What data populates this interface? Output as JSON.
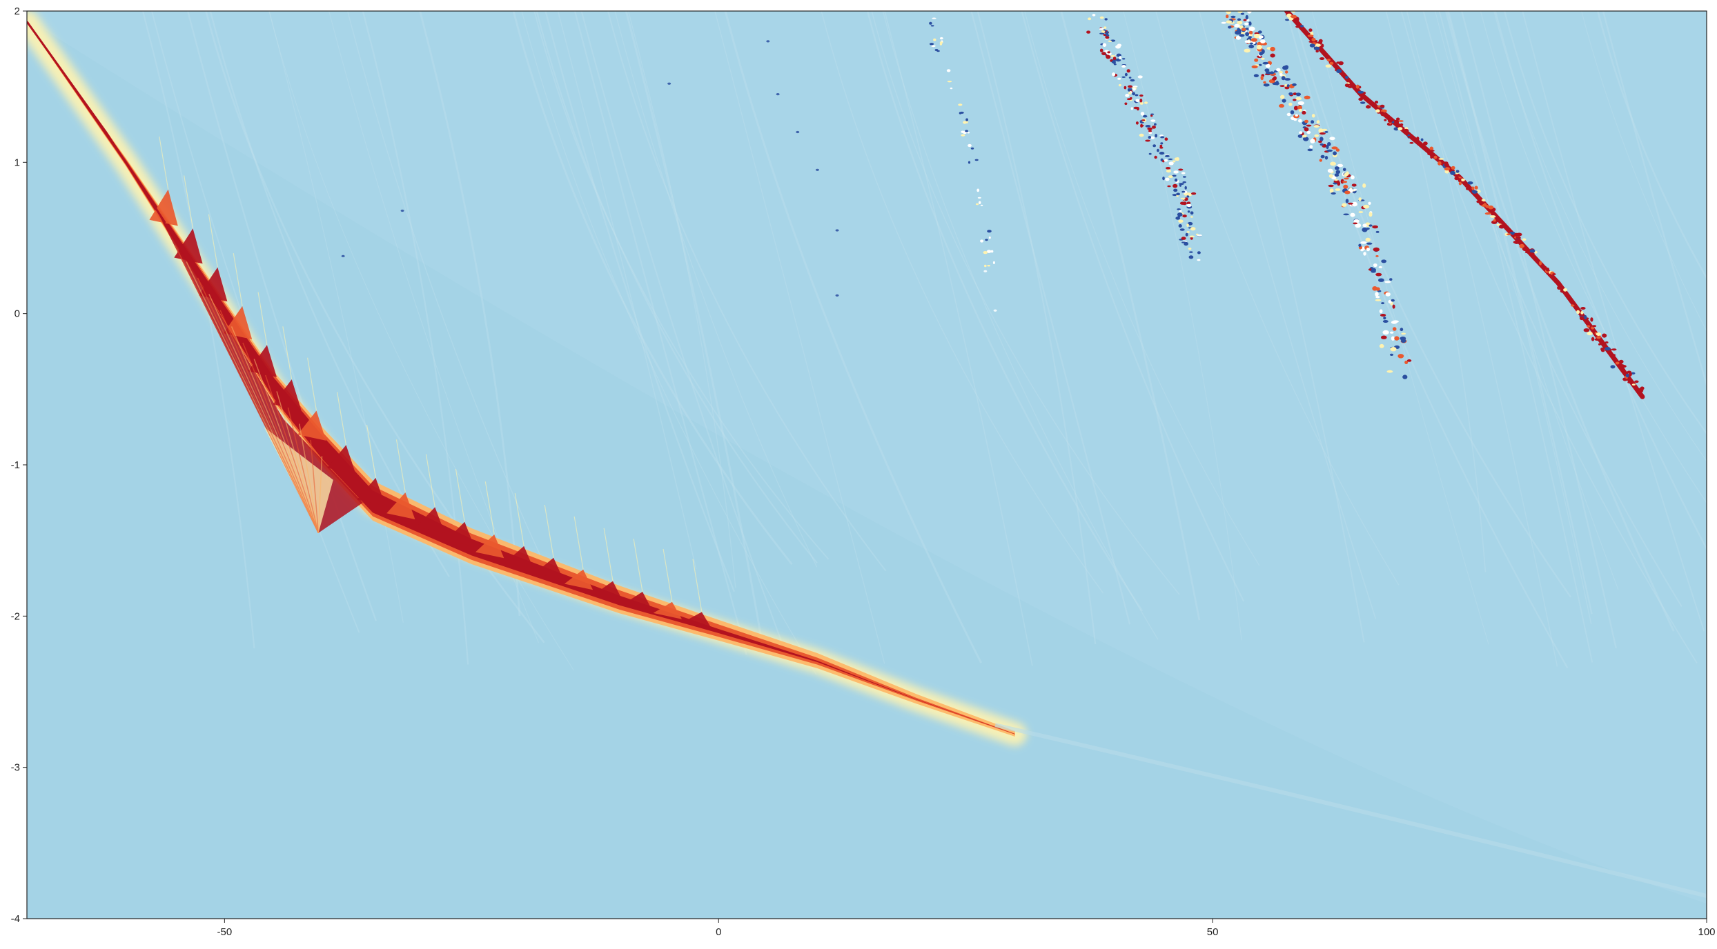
{
  "chart_data": {
    "type": "heatmap",
    "title": "",
    "xlabel": "",
    "ylabel": "",
    "xlim": [
      -70,
      100
    ],
    "ylim": [
      -4,
      2
    ],
    "x_ticks": [
      -50,
      0,
      50,
      100
    ],
    "y_ticks": [
      -4,
      -3,
      -2,
      -1,
      0,
      1,
      2
    ],
    "x_tick_labels": [
      "-50",
      "0",
      "50",
      "100"
    ],
    "y_tick_labels": [
      "-4",
      "-3",
      "-2",
      "-1",
      "0",
      "1",
      "2"
    ],
    "grid": false,
    "legend": "none",
    "colormap": "RdYlBu (reversed)",
    "colors": {
      "background": "#a4d3e6",
      "background_light": "#b3dbea",
      "high": "#b2121f",
      "mid_high": "#e9592f",
      "mid": "#fdb768",
      "low_mid": "#fff3b0",
      "low": "#2b4fa0"
    },
    "features": [
      {
        "name": "main-ridge",
        "points": [
          [
            -70,
            1.93
          ],
          [
            -60,
            1.0
          ],
          [
            -52,
            0.2
          ],
          [
            -45,
            -0.5
          ],
          [
            -40,
            -0.9
          ],
          [
            -35,
            -1.25
          ],
          [
            -25,
            -1.55
          ],
          [
            -10,
            -1.9
          ],
          [
            0,
            -2.1
          ],
          [
            10,
            -2.3
          ],
          [
            20,
            -2.55
          ],
          [
            30,
            -2.78
          ]
        ]
      },
      {
        "name": "fan-cusp",
        "points": [
          [
            -55.5,
            0.55
          ],
          [
            -48,
            -0.3
          ],
          [
            -44,
            -0.8
          ],
          [
            -40.5,
            -1.45
          ]
        ]
      },
      {
        "name": "streak-a",
        "points": [
          [
            57.5,
            2.0
          ],
          [
            65,
            1.45
          ],
          [
            75,
            0.9
          ],
          [
            85,
            0.2
          ],
          [
            93.5,
            -0.55
          ]
        ]
      },
      {
        "name": "streak-b",
        "points": [
          [
            52,
            2.0
          ],
          [
            55,
            1.7
          ],
          [
            60,
            1.2
          ],
          [
            65,
            0.7
          ],
          [
            69,
            -0.35
          ]
        ]
      },
      {
        "name": "streak-c",
        "points": [
          [
            37.5,
            2.0
          ],
          [
            41,
            1.6
          ],
          [
            44,
            1.2
          ],
          [
            47,
            0.8
          ],
          [
            48,
            0.4
          ]
        ]
      },
      {
        "name": "streak-d",
        "points": [
          [
            21,
            2.0
          ],
          [
            24,
            1.4
          ],
          [
            26,
            1.0
          ],
          [
            27.5,
            0.3
          ]
        ]
      }
    ]
  }
}
